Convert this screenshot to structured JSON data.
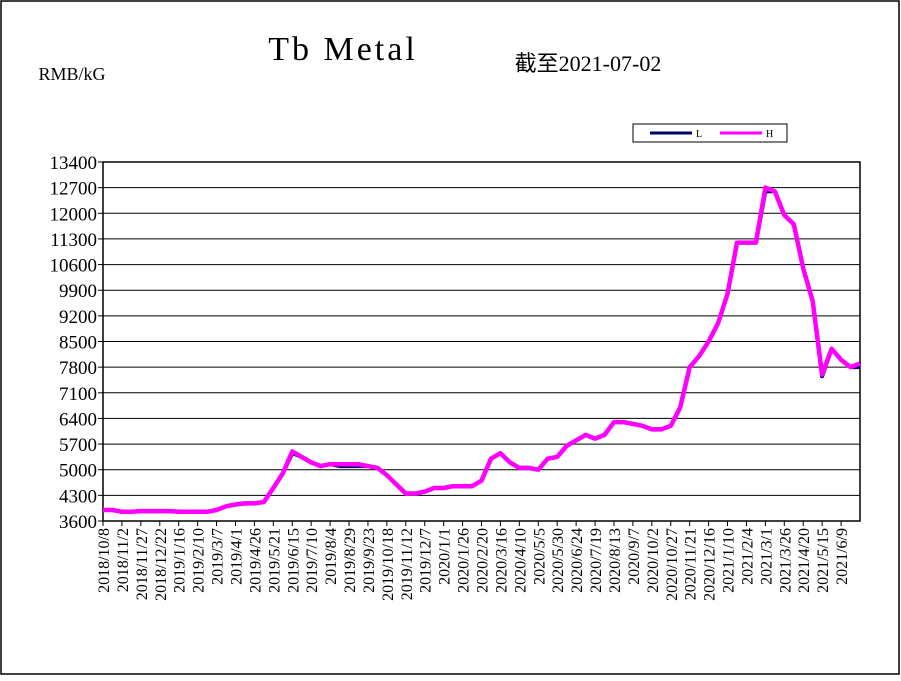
{
  "chart_data": {
    "type": "line",
    "title": "Tb Metal",
    "subtitle": "截至2021-07-02",
    "y_label": "RMB/kG",
    "categories": [
      "2018/10/8",
      null,
      "2018/11/2",
      null,
      "2018/11/27",
      null,
      "2018/12/22",
      null,
      "2019/1/16",
      null,
      "2019/2/10",
      null,
      "2019/3/7",
      null,
      "2019/4/1",
      null,
      "2019/4/26",
      null,
      "2019/5/21",
      null,
      "2019/6/15",
      null,
      "2019/7/10",
      null,
      "2019/8/4",
      null,
      "2019/8/29",
      null,
      "2019/9/23",
      null,
      "2019/10/18",
      null,
      "2019/11/12",
      null,
      "2019/12/7",
      null,
      "2020/1/1",
      null,
      "2020/1/26",
      null,
      "2020/2/20",
      null,
      "2020/3/16",
      null,
      "2020/4/10",
      null,
      "2020/5/5",
      null,
      "2020/5/30",
      null,
      "2020/6/24",
      null,
      "2020/7/19",
      null,
      "2020/8/13",
      null,
      "2020/9/7",
      null,
      "2020/10/2",
      null,
      "2020/10/27",
      null,
      "2020/11/21",
      null,
      "2020/12/16",
      null,
      "2021/1/10",
      null,
      "2021/2/4",
      null,
      "2021/3/1",
      null,
      "2021/3/26",
      null,
      "2021/4/20",
      null,
      "2021/5/15",
      null,
      "2021/6/9",
      null,
      null
    ],
    "series": [
      {
        "name": "L",
        "color": "#000066",
        "values": [
          3900,
          3900,
          3850,
          3850,
          3870,
          3870,
          3870,
          3870,
          3850,
          3850,
          3850,
          3850,
          3900,
          4000,
          4050,
          4080,
          4080,
          4120,
          4500,
          4900,
          5450,
          5350,
          5200,
          5100,
          5150,
          5100,
          5100,
          5100,
          5100,
          5050,
          4850,
          4600,
          4350,
          4350,
          4400,
          4500,
          4500,
          4550,
          4550,
          4550,
          4700,
          5300,
          5450,
          5200,
          5050,
          5050,
          5000,
          5300,
          5350,
          5650,
          5800,
          5950,
          5850,
          5950,
          6300,
          6300,
          6250,
          6200,
          6100,
          6100,
          6200,
          6700,
          7800,
          8100,
          8500,
          9000,
          9800,
          11200,
          11200,
          11200,
          12600,
          12600,
          11950,
          11700,
          10500,
          9600,
          7550,
          8300,
          8000,
          7800,
          7800
        ]
      },
      {
        "name": "H",
        "color": "#ff00ff",
        "values": [
          3900,
          3900,
          3850,
          3850,
          3870,
          3870,
          3870,
          3870,
          3850,
          3850,
          3850,
          3850,
          3900,
          4000,
          4050,
          4080,
          4080,
          4120,
          4500,
          4900,
          5500,
          5350,
          5200,
          5100,
          5150,
          5150,
          5150,
          5150,
          5100,
          5050,
          4850,
          4600,
          4350,
          4350,
          4400,
          4500,
          4500,
          4550,
          4550,
          4550,
          4700,
          5300,
          5450,
          5200,
          5050,
          5050,
          5000,
          5300,
          5350,
          5650,
          5800,
          5950,
          5850,
          5950,
          6300,
          6300,
          6250,
          6200,
          6100,
          6100,
          6200,
          6700,
          7800,
          8100,
          8500,
          9000,
          9800,
          11200,
          11200,
          11200,
          12700,
          12600,
          11950,
          11700,
          10500,
          9600,
          7600,
          8300,
          8000,
          7800,
          7900
        ]
      }
    ],
    "ylim": [
      3600,
      13400
    ],
    "yticks": [
      3600,
      4300,
      5000,
      5700,
      6400,
      7100,
      7800,
      8500,
      9200,
      9900,
      10600,
      11300,
      12000,
      12700,
      13400
    ],
    "grid": true
  }
}
